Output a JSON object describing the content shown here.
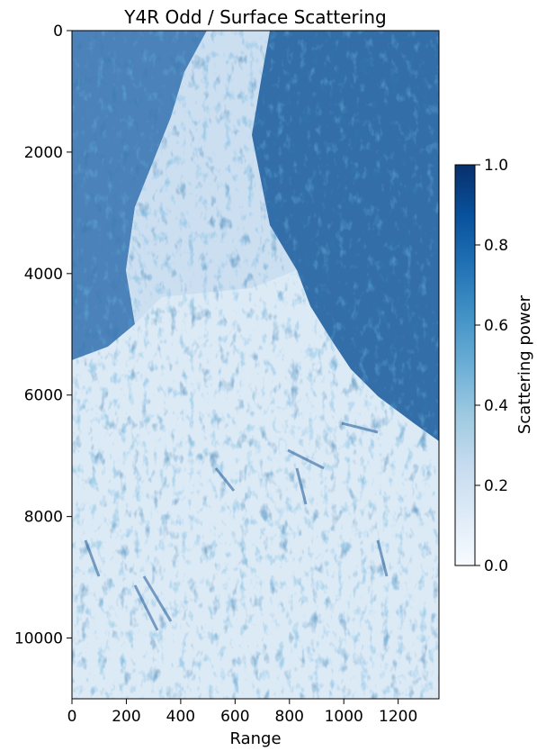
{
  "chart_data": {
    "type": "heatmap",
    "title": "Y4R Odd / Surface Scattering",
    "xlabel": "Range",
    "ylabel": "",
    "xlim": [
      0,
      1350
    ],
    "ylim": [
      11000,
      0
    ],
    "x_ticks": [
      "0",
      "200",
      "400",
      "600",
      "800",
      "1000",
      "1200"
    ],
    "x_tick_values": [
      0,
      200,
      400,
      600,
      800,
      1000,
      1200
    ],
    "y_ticks": [
      "0",
      "2000",
      "4000",
      "6000",
      "8000",
      "10000"
    ],
    "y_tick_values": [
      0,
      2000,
      4000,
      6000,
      8000,
      10000
    ],
    "colormap": "Blues",
    "colormap_stops": [
      "#f7fbff",
      "#deebf7",
      "#c6dbef",
      "#9ecae1",
      "#6baed6",
      "#4292c6",
      "#2171b5",
      "#08519c",
      "#08306b"
    ],
    "colorbar": {
      "label": "Scattering power",
      "range": [
        0.0,
        1.0
      ],
      "ticks": [
        "0.0",
        "0.2",
        "0.4",
        "0.6",
        "0.8",
        "1.0"
      ],
      "tick_values": [
        0.0,
        0.2,
        0.4,
        0.6,
        0.8,
        1.0
      ]
    },
    "grid": false
  }
}
